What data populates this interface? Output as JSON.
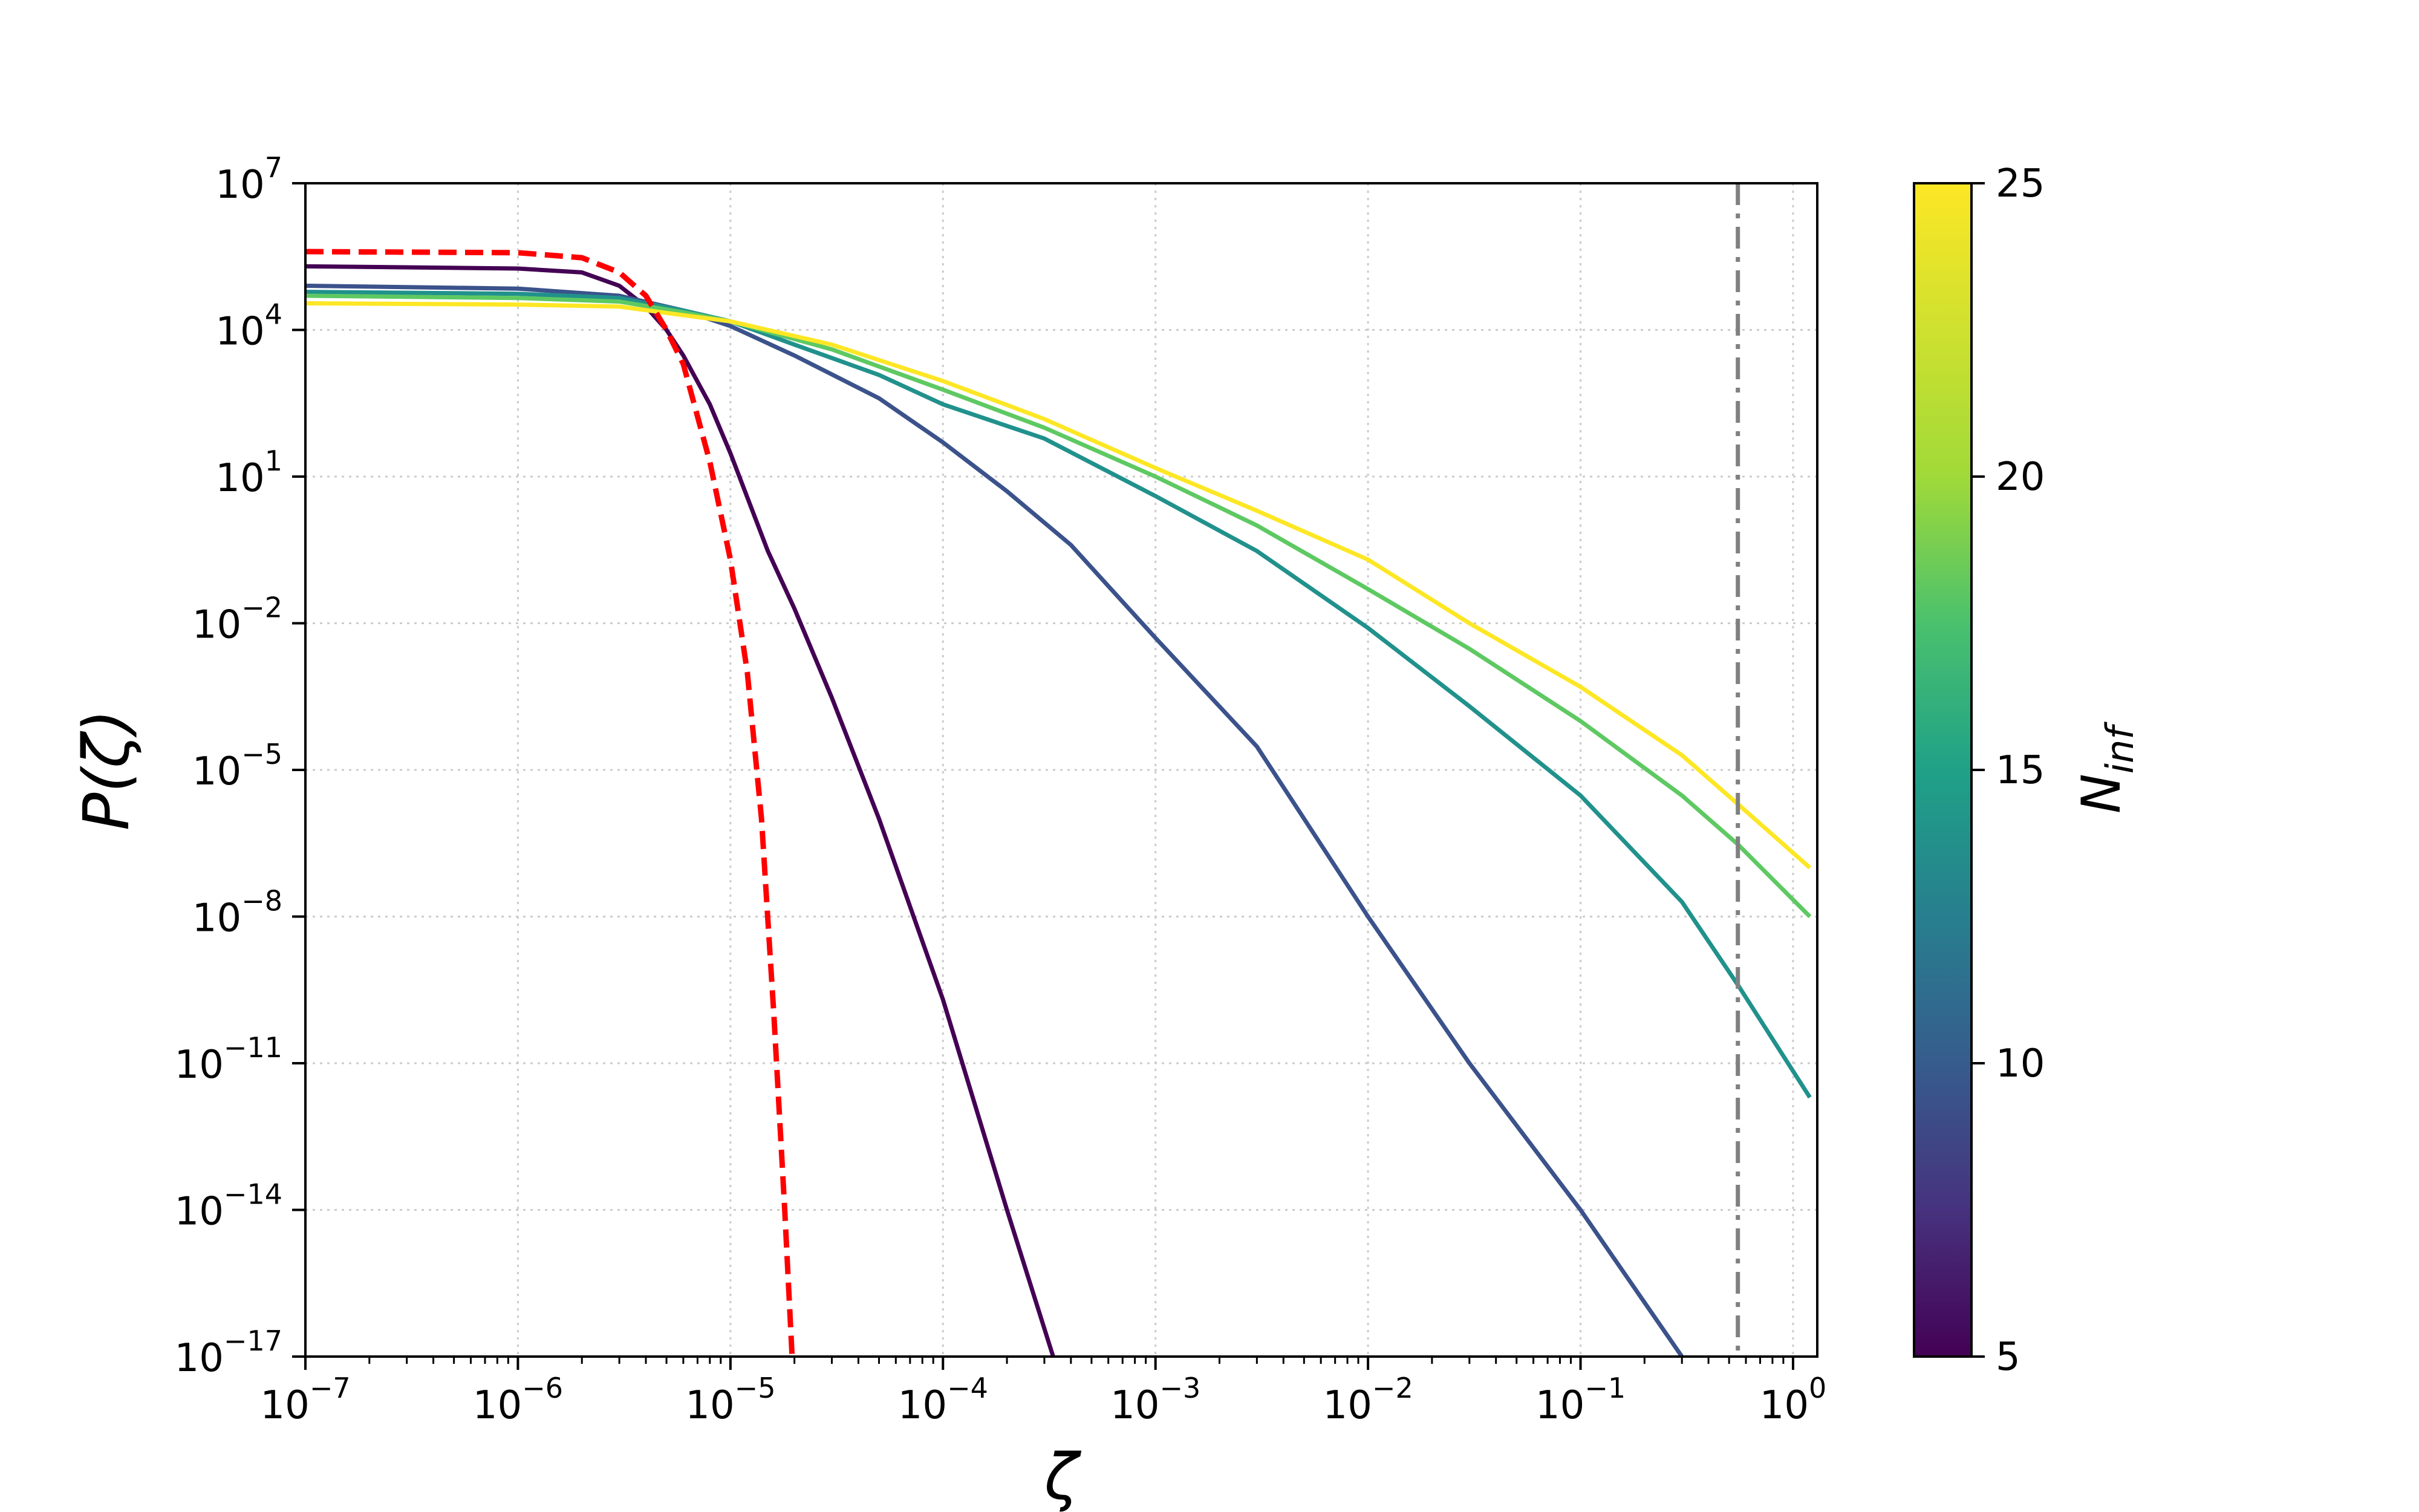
{
  "chart_data": {
    "type": "line",
    "xscale": "log",
    "yscale": "log",
    "xlabel": "ζ",
    "ylabel": "P(ζ)",
    "xlim": [
      1e-07,
      1.3
    ],
    "ylim": [
      1e-17,
      10000000.0
    ],
    "grid": true,
    "grid_style": "dotted",
    "x_ticks": [
      {
        "base": "10",
        "exp": "−7",
        "value": 1e-07
      },
      {
        "base": "10",
        "exp": "−6",
        "value": 1e-06
      },
      {
        "base": "10",
        "exp": "−5",
        "value": 1e-05
      },
      {
        "base": "10",
        "exp": "−4",
        "value": 0.0001
      },
      {
        "base": "10",
        "exp": "−3",
        "value": 0.001
      },
      {
        "base": "10",
        "exp": "−2",
        "value": 0.01
      },
      {
        "base": "10",
        "exp": "−1",
        "value": 0.1
      },
      {
        "base": "10",
        "exp": "0",
        "value": 1
      }
    ],
    "y_ticks": [
      {
        "base": "10",
        "exp": "7",
        "value": 10000000.0
      },
      {
        "base": "10",
        "exp": "4",
        "value": 10000.0
      },
      {
        "base": "10",
        "exp": "1",
        "value": 10.0
      },
      {
        "base": "10",
        "exp": "−2",
        "value": 0.01
      },
      {
        "base": "10",
        "exp": "−5",
        "value": 1e-05
      },
      {
        "base": "10",
        "exp": "−8",
        "value": 1e-08
      },
      {
        "base": "10",
        "exp": "−11",
        "value": 1e-11
      },
      {
        "base": "10",
        "exp": "−14",
        "value": 1e-14
      },
      {
        "base": "10",
        "exp": "−17",
        "value": 1e-17
      }
    ],
    "colorbar": {
      "label": "N",
      "label_sub": "inf",
      "range": [
        5,
        25
      ],
      "colormap": "viridis",
      "ticks": [
        "5",
        "10",
        "15",
        "20",
        "25"
      ]
    },
    "reference_line": {
      "x": 0.55,
      "style": "dash-dot",
      "color": "#808080"
    },
    "series": [
      {
        "n_inf": 5,
        "color": "#440154",
        "style": "solid",
        "points": [
          [
            1e-07,
            200000.0
          ],
          [
            1e-06,
            180000.0
          ],
          [
            2e-06,
            150000.0
          ],
          [
            3e-06,
            80000.0
          ],
          [
            4e-06,
            30000.0
          ],
          [
            5e-06,
            10000.0
          ],
          [
            6e-06,
            3000.0
          ],
          [
            8e-06,
            300.0
          ],
          [
            1e-05,
            30
          ],
          [
            1.5e-05,
            0.3
          ],
          [
            2e-05,
            0.02
          ],
          [
            3e-05,
            0.0003
          ],
          [
            5e-05,
            1e-06
          ],
          [
            0.0001,
            2e-10
          ],
          [
            0.0002,
            1e-14
          ],
          [
            0.00033,
            1e-17
          ]
        ]
      },
      {
        "n_inf": 10,
        "color": "#3b528b",
        "style": "solid",
        "points": [
          [
            1e-07,
            80000.0
          ],
          [
            1e-06,
            70000.0
          ],
          [
            3e-06,
            50000.0
          ],
          [
            6e-06,
            25000.0
          ],
          [
            1e-05,
            12000.0
          ],
          [
            2e-05,
            3000.0
          ],
          [
            5e-05,
            400
          ],
          [
            0.0001,
            50
          ],
          [
            0.0002,
            5
          ],
          [
            0.0004,
            0.4
          ],
          [
            0.001,
            0.005
          ],
          [
            0.003,
            3e-05
          ],
          [
            0.01,
            1e-08
          ],
          [
            0.03,
            1e-11
          ],
          [
            0.1,
            1e-14
          ],
          [
            0.3,
            1e-17
          ]
        ]
      },
      {
        "n_inf": 15,
        "color": "#21918c",
        "style": "solid",
        "points": [
          [
            1e-07,
            60000.0
          ],
          [
            1e-06,
            55000.0
          ],
          [
            3e-06,
            45000.0
          ],
          [
            6e-06,
            25000.0
          ],
          [
            1e-05,
            15000.0
          ],
          [
            2e-05,
            5000.0
          ],
          [
            5e-05,
            1200.0
          ],
          [
            0.0001,
            300
          ],
          [
            0.0003,
            60
          ],
          [
            0.001,
            4
          ],
          [
            0.003,
            0.3
          ],
          [
            0.01,
            0.008
          ],
          [
            0.03,
            0.0002
          ],
          [
            0.1,
            3e-06
          ],
          [
            0.3,
            2e-08
          ],
          [
            0.55,
            4e-10
          ],
          [
            1.2,
            2e-12
          ]
        ]
      },
      {
        "n_inf": 20,
        "color": "#5ec962",
        "style": "solid",
        "points": [
          [
            1e-07,
            50000.0
          ],
          [
            1e-06,
            45000.0
          ],
          [
            3e-06,
            38000.0
          ],
          [
            6e-06,
            23000.0
          ],
          [
            1e-05,
            15000.0
          ],
          [
            3e-05,
            4000.0
          ],
          [
            0.0001,
            600
          ],
          [
            0.0003,
            100
          ],
          [
            0.001,
            10
          ],
          [
            0.003,
            1
          ],
          [
            0.01,
            0.05
          ],
          [
            0.03,
            0.003
          ],
          [
            0.1,
            0.0001
          ],
          [
            0.3,
            3e-06
          ],
          [
            0.55,
            3e-07
          ],
          [
            1.2,
            1e-08
          ]
        ]
      },
      {
        "n_inf": 25,
        "color": "#fde725",
        "style": "solid",
        "points": [
          [
            1e-07,
            35000.0
          ],
          [
            1e-06,
            33000.0
          ],
          [
            3e-06,
            30000.0
          ],
          [
            6e-06,
            20000.0
          ],
          [
            1e-05,
            15000.0
          ],
          [
            3e-05,
            5000.0
          ],
          [
            0.0001,
            900
          ],
          [
            0.0003,
            150
          ],
          [
            0.001,
            15
          ],
          [
            0.003,
            2
          ],
          [
            0.01,
            0.2
          ],
          [
            0.03,
            0.01
          ],
          [
            0.1,
            0.0005
          ],
          [
            0.3,
            2e-05
          ],
          [
            0.55,
            2e-06
          ],
          [
            1.2,
            1e-07
          ]
        ]
      },
      {
        "n_inf": null,
        "color": "#ff0000",
        "style": "dashed",
        "points": [
          [
            1e-07,
            400000.0
          ],
          [
            1e-06,
            380000.0
          ],
          [
            2e-06,
            300000.0
          ],
          [
            3e-06,
            150000.0
          ],
          [
            4e-06,
            50000.0
          ],
          [
            5e-06,
            10000.0
          ],
          [
            6e-06,
            2000.0
          ],
          [
            8e-06,
            20
          ],
          [
            1e-05,
            0.2
          ],
          [
            1.2e-05,
            0.001
          ],
          [
            1.4e-05,
            1e-06
          ],
          [
            1.6e-05,
            1e-10
          ],
          [
            1.8e-05,
            1e-14
          ],
          [
            1.95e-05,
            1e-17
          ]
        ]
      }
    ]
  }
}
